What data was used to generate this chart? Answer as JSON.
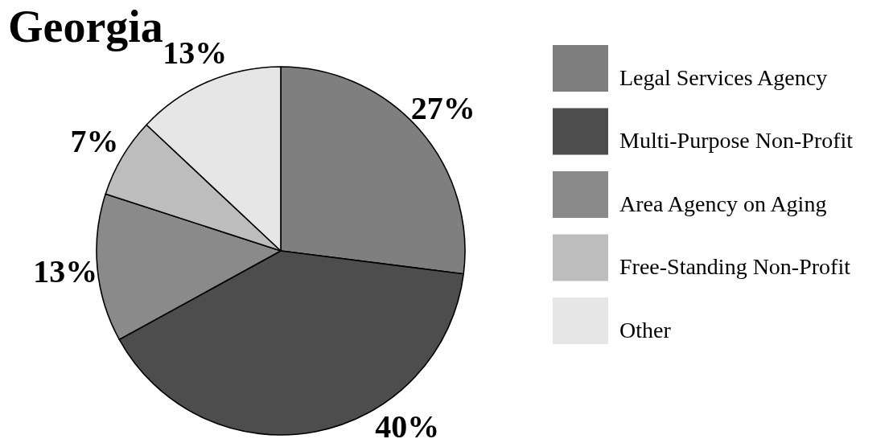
{
  "chart_data": {
    "type": "pie",
    "title": "Georgia",
    "categories": [
      "Legal Services Agency",
      "Multi-Purpose Non-Profit",
      "Area Agency on Aging",
      "Free-Standing Non-Profit",
      "Other"
    ],
    "values": [
      27,
      40,
      13,
      7,
      13
    ],
    "value_labels": [
      "27%",
      "40%",
      "13%",
      "7%",
      "13%"
    ],
    "colors": [
      "#7f7f7f",
      "#4d4d4d",
      "#8a8a8a",
      "#bdbdbd",
      "#e6e6e6"
    ],
    "legend": "right"
  }
}
